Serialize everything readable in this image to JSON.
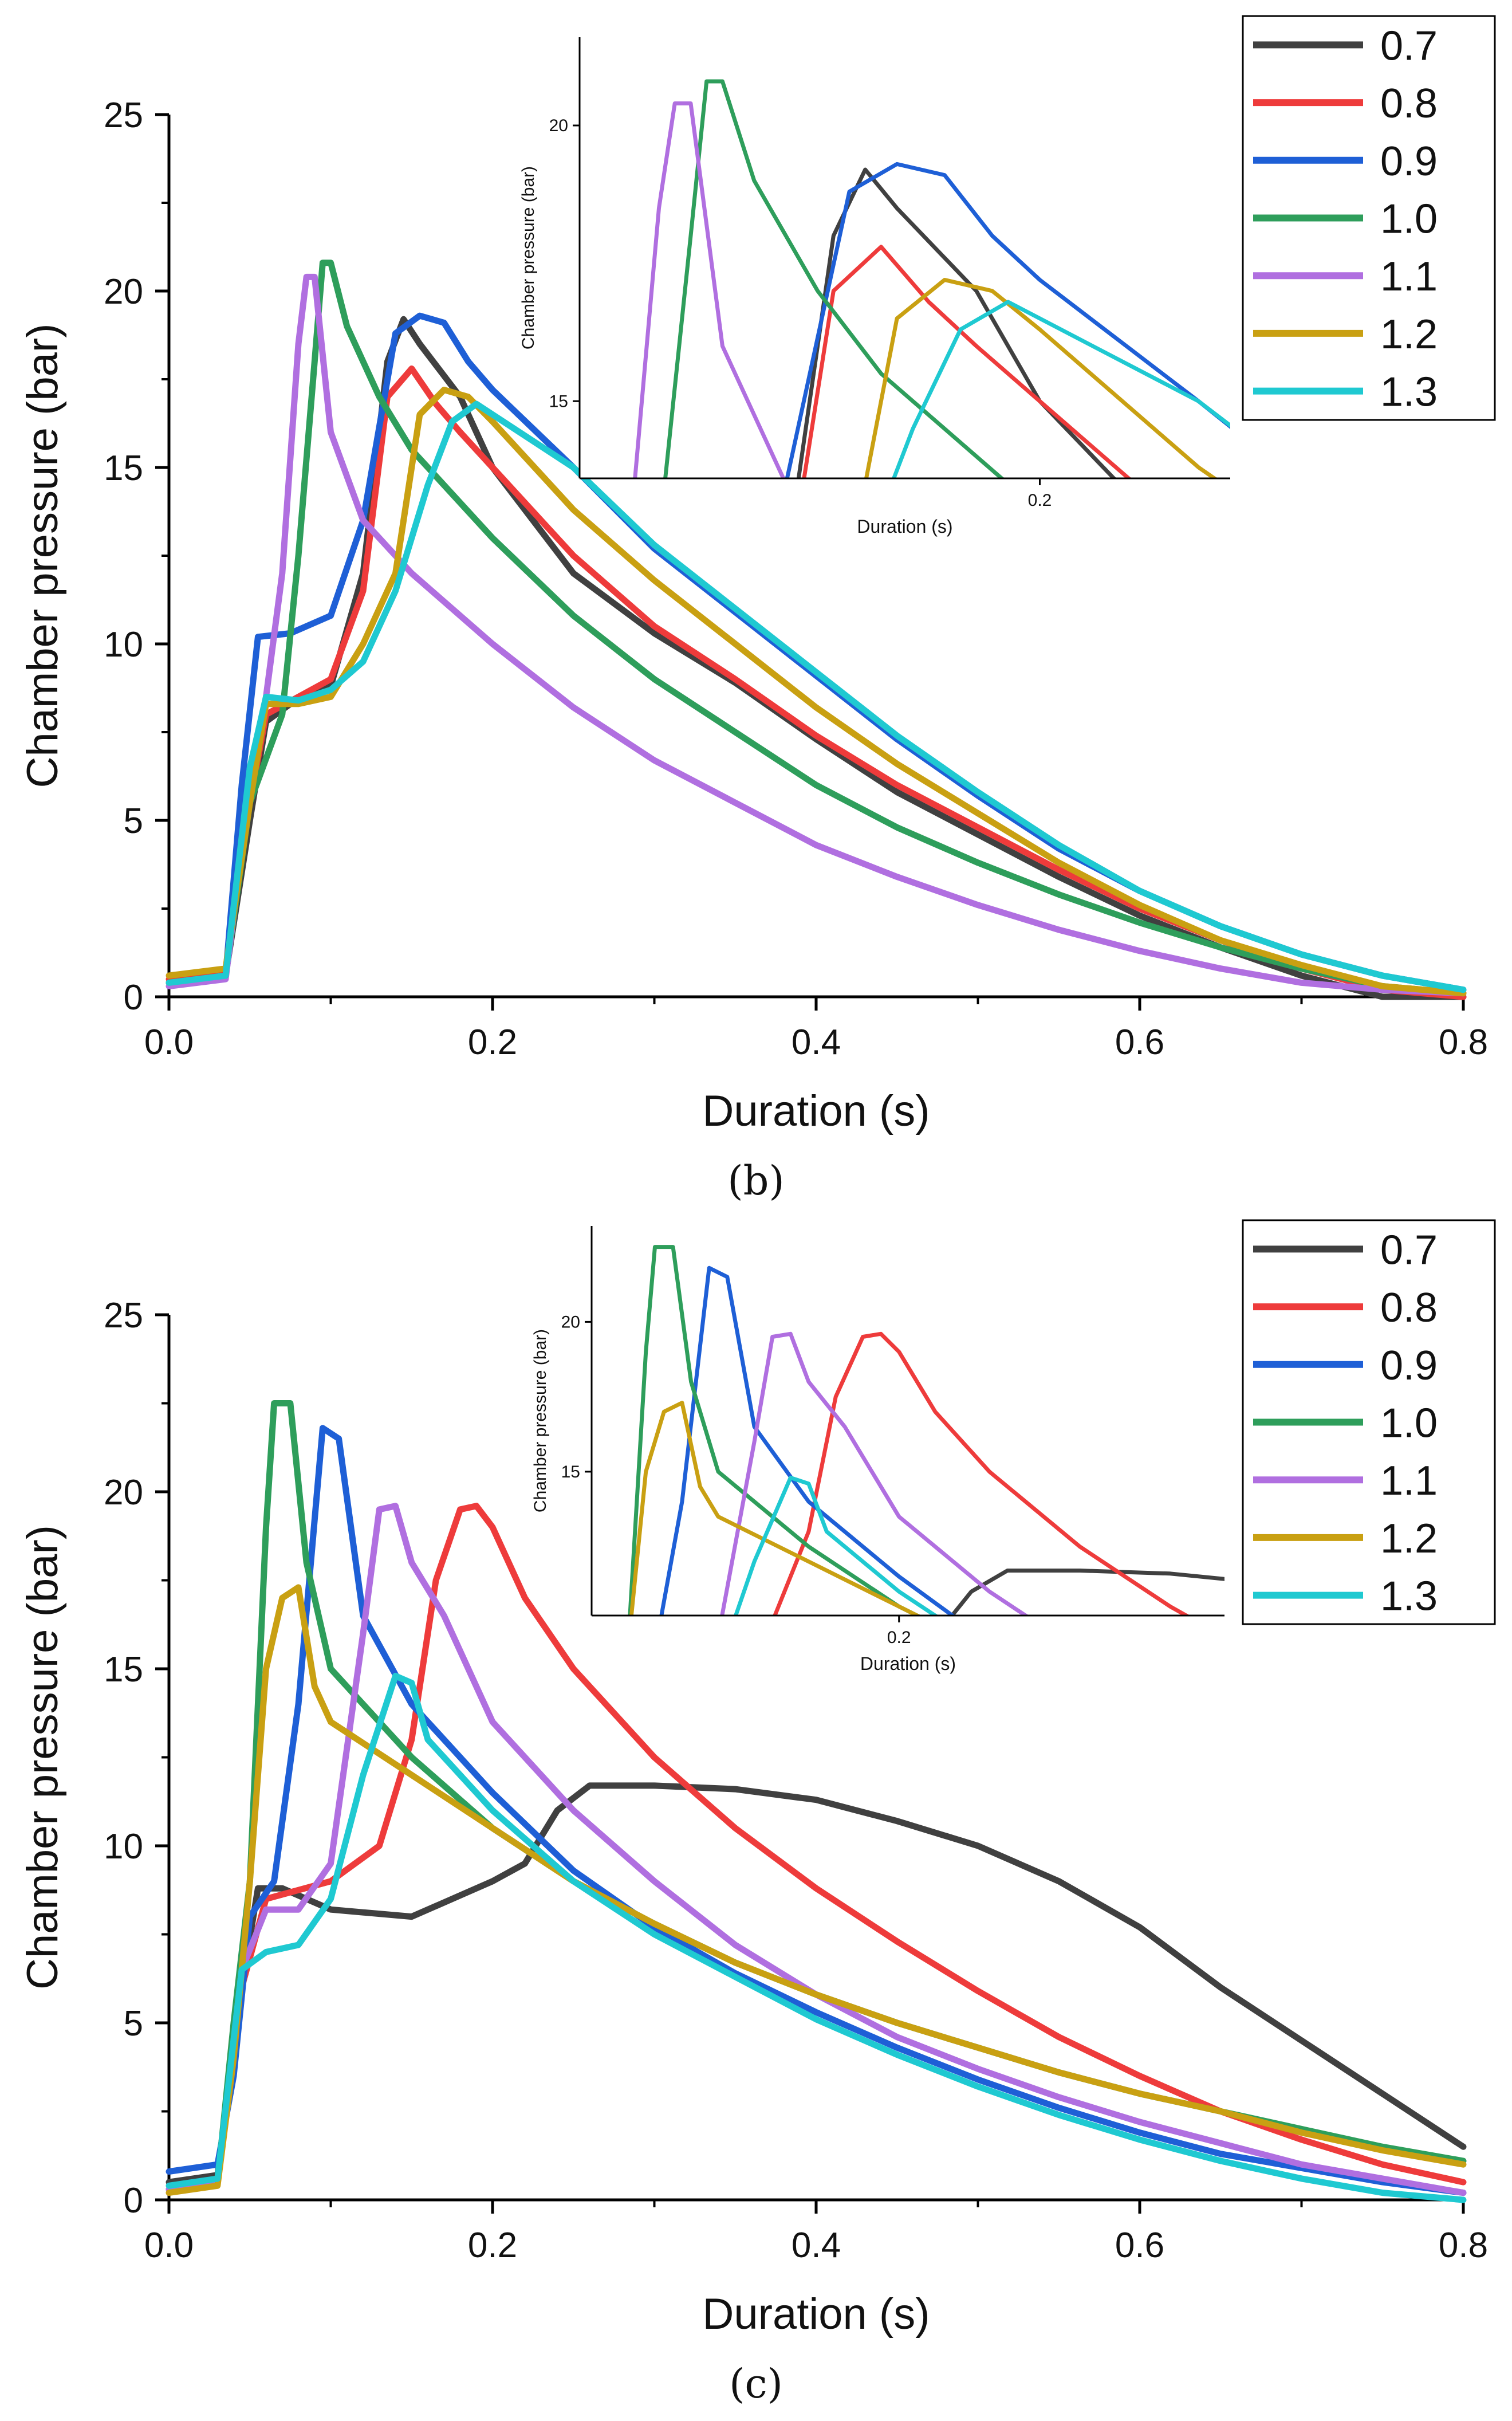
{
  "chart_data": [
    {
      "type": "line",
      "panel_label": "(b)",
      "xlabel": "Duration (s)",
      "ylabel": "Chamber pressure (bar)",
      "xlim": [
        0,
        0.8
      ],
      "ylim": [
        0,
        25
      ],
      "x_ticks": [
        "0.0",
        "0.2",
        "0.4",
        "0.6",
        "0.8"
      ],
      "y_ticks": [
        "0",
        "5",
        "10",
        "15",
        "20",
        "25"
      ],
      "legend": "top-right",
      "series": [
        {
          "name": "0.7",
          "color": "#404040",
          "x": [
            0,
            0.035,
            0.05,
            0.06,
            0.075,
            0.1,
            0.12,
            0.135,
            0.145,
            0.155,
            0.18,
            0.2,
            0.25,
            0.3,
            0.35,
            0.4,
            0.45,
            0.5,
            0.55,
            0.6,
            0.65,
            0.7,
            0.75,
            0.8
          ],
          "y": [
            0.4,
            0.6,
            5.0,
            7.8,
            8.3,
            8.8,
            12.0,
            18.0,
            19.2,
            18.5,
            17.0,
            15.0,
            12.0,
            10.3,
            8.9,
            7.3,
            5.8,
            4.6,
            3.4,
            2.3,
            1.4,
            0.6,
            0.0,
            0.0
          ]
        },
        {
          "name": "0.8",
          "color": "#ee3b3b",
          "x": [
            0,
            0.035,
            0.05,
            0.06,
            0.08,
            0.1,
            0.12,
            0.135,
            0.15,
            0.165,
            0.18,
            0.2,
            0.25,
            0.3,
            0.35,
            0.4,
            0.45,
            0.5,
            0.55,
            0.6,
            0.65,
            0.7,
            0.75,
            0.8
          ],
          "y": [
            0.5,
            0.7,
            5.5,
            8.0,
            8.5,
            9.0,
            11.5,
            17.0,
            17.8,
            16.8,
            16.0,
            15.0,
            12.5,
            10.5,
            9.0,
            7.4,
            6.0,
            4.8,
            3.6,
            2.5,
            1.6,
            0.8,
            0.2,
            0.0
          ]
        },
        {
          "name": "0.9",
          "color": "#1e5fd6",
          "x": [
            0,
            0.035,
            0.045,
            0.055,
            0.075,
            0.1,
            0.12,
            0.14,
            0.155,
            0.17,
            0.185,
            0.2,
            0.25,
            0.3,
            0.35,
            0.4,
            0.45,
            0.5,
            0.55,
            0.6,
            0.65,
            0.7,
            0.75,
            0.8
          ],
          "y": [
            0.4,
            0.6,
            6.0,
            10.2,
            10.3,
            10.8,
            13.5,
            18.8,
            19.3,
            19.1,
            18.0,
            17.2,
            15.0,
            12.7,
            10.9,
            9.1,
            7.3,
            5.7,
            4.2,
            3.0,
            2.0,
            1.2,
            0.6,
            0.2
          ]
        },
        {
          "name": "1.0",
          "color": "#2e9e5b",
          "x": [
            0,
            0.035,
            0.05,
            0.07,
            0.08,
            0.09,
            0.095,
            0.1,
            0.11,
            0.13,
            0.15,
            0.2,
            0.25,
            0.3,
            0.35,
            0.4,
            0.45,
            0.5,
            0.55,
            0.6,
            0.65,
            0.7,
            0.75,
            0.8
          ],
          "y": [
            0.4,
            0.6,
            5.5,
            8.0,
            12.5,
            18.0,
            20.8,
            20.8,
            19.0,
            17.0,
            15.5,
            13.0,
            10.8,
            9.0,
            7.5,
            6.0,
            4.8,
            3.8,
            2.9,
            2.1,
            1.4,
            0.8,
            0.3,
            0.1
          ]
        },
        {
          "name": "1.1",
          "color": "#b06fe0",
          "x": [
            0,
            0.035,
            0.05,
            0.06,
            0.07,
            0.08,
            0.085,
            0.09,
            0.1,
            0.12,
            0.15,
            0.2,
            0.25,
            0.3,
            0.35,
            0.4,
            0.45,
            0.5,
            0.55,
            0.6,
            0.65,
            0.7,
            0.75,
            0.8
          ],
          "y": [
            0.3,
            0.5,
            6.0,
            8.5,
            12.0,
            18.5,
            20.4,
            20.4,
            16.0,
            13.5,
            12.0,
            10.0,
            8.2,
            6.7,
            5.5,
            4.3,
            3.4,
            2.6,
            1.9,
            1.3,
            0.8,
            0.4,
            0.2,
            0.1
          ]
        },
        {
          "name": "1.2",
          "color": "#c9a012",
          "x": [
            0,
            0.035,
            0.05,
            0.06,
            0.08,
            0.1,
            0.12,
            0.14,
            0.155,
            0.17,
            0.185,
            0.2,
            0.25,
            0.3,
            0.35,
            0.4,
            0.45,
            0.5,
            0.55,
            0.6,
            0.65,
            0.7,
            0.75,
            0.8
          ],
          "y": [
            0.6,
            0.8,
            5.5,
            8.3,
            8.3,
            8.5,
            10.0,
            12.0,
            16.5,
            17.2,
            17.0,
            16.3,
            13.8,
            11.8,
            10.0,
            8.2,
            6.6,
            5.2,
            3.8,
            2.6,
            1.6,
            0.9,
            0.3,
            0.1
          ]
        },
        {
          "name": "1.3",
          "color": "#1fc9d1",
          "x": [
            0,
            0.035,
            0.05,
            0.06,
            0.08,
            0.1,
            0.12,
            0.14,
            0.16,
            0.175,
            0.19,
            0.2,
            0.25,
            0.3,
            0.35,
            0.4,
            0.45,
            0.5,
            0.55,
            0.6,
            0.65,
            0.7,
            0.75,
            0.8
          ],
          "y": [
            0.4,
            0.6,
            6.5,
            8.5,
            8.4,
            8.7,
            9.5,
            11.5,
            14.5,
            16.3,
            16.8,
            16.5,
            15.0,
            12.8,
            11.0,
            9.2,
            7.4,
            5.8,
            4.3,
            3.0,
            2.0,
            1.2,
            0.6,
            0.2
          ]
        }
      ],
      "inset": {
        "xlabel": "Duration (s)",
        "ylabel": "Chamber pressure (bar)",
        "xlim": [
          0.055,
          0.26
        ],
        "ylim": [
          13.6,
          21.6
        ],
        "x_ticks": [
          "0.2"
        ],
        "y_ticks": [
          "15",
          "20"
        ]
      }
    },
    {
      "type": "line",
      "panel_label": "(c)",
      "xlabel": "Duration (s)",
      "ylabel": "Chamber pressure (bar)",
      "xlim": [
        0,
        0.8
      ],
      "ylim": [
        0,
        25
      ],
      "x_ticks": [
        "0.0",
        "0.2",
        "0.4",
        "0.6",
        "0.8"
      ],
      "y_ticks": [
        "0",
        "5",
        "10",
        "15",
        "20",
        "25"
      ],
      "legend": "top-right",
      "series": [
        {
          "name": "0.7",
          "color": "#404040",
          "x": [
            0,
            0.03,
            0.045,
            0.055,
            0.07,
            0.1,
            0.15,
            0.2,
            0.22,
            0.24,
            0.26,
            0.3,
            0.35,
            0.4,
            0.45,
            0.5,
            0.55,
            0.6,
            0.65,
            0.7,
            0.75,
            0.8
          ],
          "y": [
            0.5,
            0.7,
            6.0,
            8.8,
            8.8,
            8.2,
            8.0,
            9.0,
            9.5,
            11.0,
            11.7,
            11.7,
            11.6,
            11.3,
            10.7,
            10.0,
            9.0,
            7.7,
            6.0,
            4.5,
            3.0,
            1.5
          ]
        },
        {
          "name": "0.8",
          "color": "#ee3b3b",
          "x": [
            0,
            0.03,
            0.045,
            0.06,
            0.1,
            0.13,
            0.15,
            0.165,
            0.18,
            0.19,
            0.2,
            0.22,
            0.25,
            0.3,
            0.35,
            0.4,
            0.45,
            0.5,
            0.55,
            0.6,
            0.65,
            0.7,
            0.75,
            0.8
          ],
          "y": [
            0.3,
            0.5,
            6.0,
            8.5,
            9.0,
            10.0,
            13.0,
            17.5,
            19.5,
            19.6,
            19.0,
            17.0,
            15.0,
            12.5,
            10.5,
            8.8,
            7.3,
            5.9,
            4.6,
            3.5,
            2.5,
            1.7,
            1.0,
            0.5
          ]
        },
        {
          "name": "0.9",
          "color": "#1e5fd6",
          "x": [
            0,
            0.03,
            0.04,
            0.05,
            0.065,
            0.08,
            0.095,
            0.105,
            0.12,
            0.15,
            0.2,
            0.25,
            0.3,
            0.35,
            0.4,
            0.45,
            0.5,
            0.55,
            0.6,
            0.65,
            0.7,
            0.75,
            0.8
          ],
          "y": [
            0.8,
            1.0,
            3.5,
            8.0,
            9.0,
            14.0,
            21.8,
            21.5,
            16.5,
            14.0,
            11.5,
            9.3,
            7.7,
            6.4,
            5.3,
            4.3,
            3.4,
            2.6,
            1.9,
            1.3,
            0.9,
            0.5,
            0.2
          ]
        },
        {
          "name": "1.0",
          "color": "#2e9e5b",
          "x": [
            0,
            0.03,
            0.04,
            0.05,
            0.06,
            0.065,
            0.075,
            0.085,
            0.1,
            0.15,
            0.2,
            0.25,
            0.3,
            0.35,
            0.4,
            0.45,
            0.5,
            0.55,
            0.6,
            0.65,
            0.7,
            0.75,
            0.8
          ],
          "y": [
            0.3,
            0.5,
            5.0,
            9.0,
            19.0,
            22.5,
            22.5,
            18.0,
            15.0,
            12.5,
            10.5,
            9.0,
            7.8,
            6.7,
            5.8,
            5.0,
            4.3,
            3.6,
            3.0,
            2.5,
            2.0,
            1.5,
            1.1
          ]
        },
        {
          "name": "1.1",
          "color": "#b06fe0",
          "x": [
            0,
            0.03,
            0.045,
            0.06,
            0.08,
            0.1,
            0.12,
            0.13,
            0.14,
            0.15,
            0.17,
            0.2,
            0.25,
            0.3,
            0.35,
            0.4,
            0.45,
            0.5,
            0.55,
            0.6,
            0.65,
            0.7,
            0.75,
            0.8
          ],
          "y": [
            0.3,
            0.5,
            6.5,
            8.2,
            8.2,
            9.5,
            16.0,
            19.5,
            19.6,
            18.0,
            16.5,
            13.5,
            11.0,
            9.0,
            7.2,
            5.8,
            4.6,
            3.7,
            2.9,
            2.2,
            1.6,
            1.0,
            0.6,
            0.2
          ]
        },
        {
          "name": "1.2",
          "color": "#c9a012",
          "x": [
            0,
            0.03,
            0.04,
            0.05,
            0.06,
            0.07,
            0.08,
            0.09,
            0.1,
            0.15,
            0.2,
            0.25,
            0.3,
            0.35,
            0.4,
            0.45,
            0.5,
            0.55,
            0.6,
            0.65,
            0.7,
            0.75,
            0.8
          ],
          "y": [
            0.2,
            0.4,
            4.0,
            9.0,
            15.0,
            17.0,
            17.3,
            14.5,
            13.5,
            12.0,
            10.5,
            9.0,
            7.8,
            6.7,
            5.8,
            5.0,
            4.3,
            3.6,
            3.0,
            2.5,
            1.9,
            1.4,
            1.0
          ]
        },
        {
          "name": "1.3",
          "color": "#1fc9d1",
          "x": [
            0,
            0.03,
            0.045,
            0.06,
            0.08,
            0.1,
            0.12,
            0.14,
            0.15,
            0.16,
            0.2,
            0.25,
            0.3,
            0.35,
            0.4,
            0.45,
            0.5,
            0.55,
            0.6,
            0.65,
            0.7,
            0.75,
            0.8
          ],
          "y": [
            0.4,
            0.6,
            6.5,
            7.0,
            7.2,
            8.5,
            12.0,
            14.8,
            14.6,
            13.0,
            11.0,
            9.0,
            7.5,
            6.3,
            5.1,
            4.1,
            3.2,
            2.4,
            1.7,
            1.1,
            0.6,
            0.2,
            0.0
          ]
        }
      ],
      "inset": {
        "xlabel": "Duration (s)",
        "ylabel": "Chamber pressure (bar)",
        "xlim": [
          0.03,
          0.38
        ],
        "ylim": [
          10.2,
          23.2
        ],
        "x_ticks": [
          "0.2"
        ],
        "y_ticks": [
          "15",
          "20"
        ]
      }
    }
  ]
}
